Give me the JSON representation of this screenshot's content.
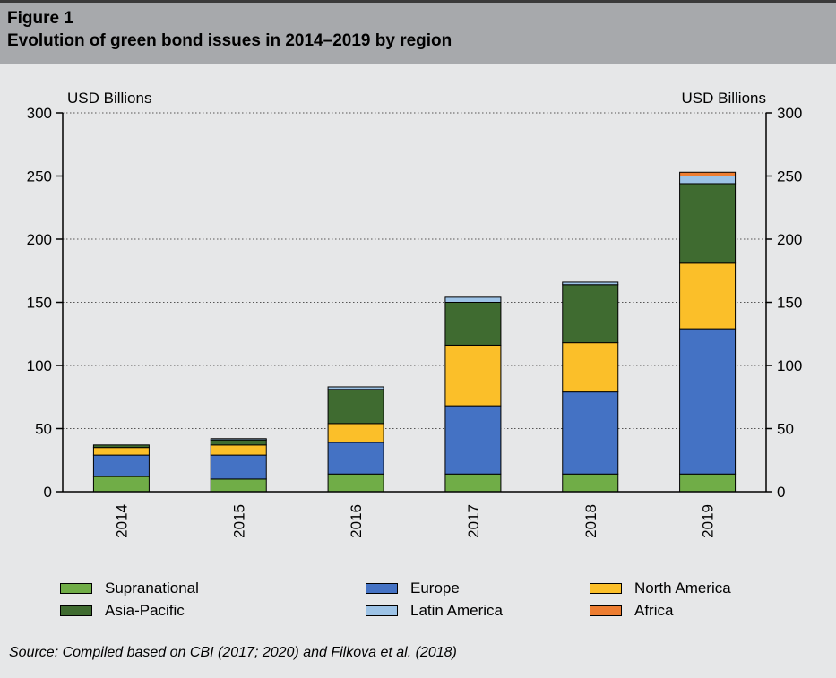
{
  "figure": {
    "label": "Figure 1",
    "title": "Evolution of green bond issues in 2014–2019 by region",
    "source": "Source: Compiled based on CBI (2017; 2020) and Filkova et al. (2018)"
  },
  "chart_data": {
    "type": "bar",
    "stacked": true,
    "categories": [
      "2014",
      "2015",
      "2016",
      "2017",
      "2018",
      "2019"
    ],
    "ylabel_left": "USD Billions",
    "ylabel_right": "USD Billions",
    "ylim": [
      0,
      300
    ],
    "yticks": [
      0,
      50,
      100,
      150,
      200,
      250,
      300
    ],
    "grid": "horizontal dotted",
    "legend_position": "bottom",
    "series": [
      {
        "name": "Supranational",
        "color": "#70ad47",
        "values": [
          12,
          10,
          14,
          14,
          14,
          14
        ]
      },
      {
        "name": "Europe",
        "color": "#4472c4",
        "values": [
          17,
          19,
          25,
          54,
          65,
          115
        ]
      },
      {
        "name": "North America",
        "color": "#fbbf29",
        "values": [
          6,
          8,
          15,
          48,
          39,
          52
        ]
      },
      {
        "name": "Asia-Pacific",
        "color": "#3f6b30",
        "values": [
          2,
          4,
          27,
          34,
          46,
          63
        ]
      },
      {
        "name": "Latin America",
        "color": "#9dc3e6",
        "values": [
          0,
          1,
          2,
          4,
          2,
          6
        ]
      },
      {
        "name": "Africa",
        "color": "#ed7d31",
        "values": [
          0,
          0,
          0,
          0,
          0,
          3
        ]
      }
    ]
  }
}
